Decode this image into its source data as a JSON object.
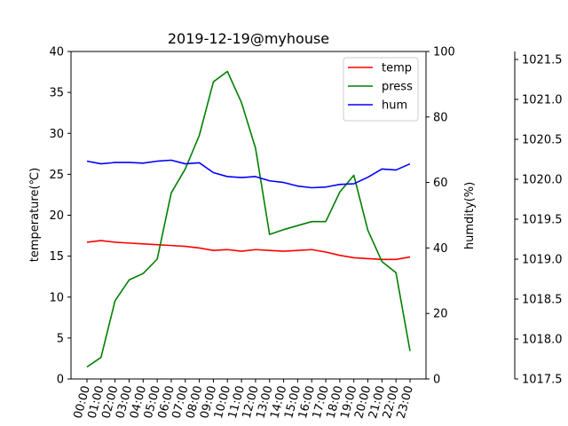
{
  "chart_data": {
    "type": "line",
    "title": "2019-12-19@myhouse",
    "xlabel": "",
    "categories": [
      "00:00",
      "01:00",
      "02:00",
      "03:00",
      "04:00",
      "05:00",
      "06:00",
      "07:00",
      "08:00",
      "09:00",
      "10:00",
      "11:00",
      "12:00",
      "13:00",
      "14:00",
      "15:00",
      "16:00",
      "17:00",
      "18:00",
      "19:00",
      "20:00",
      "21:00",
      "22:00",
      "23:00"
    ],
    "axes": {
      "left": {
        "label": "temperature(℃)",
        "ylim": [
          0,
          40
        ],
        "ticks": [
          "0",
          "5",
          "10",
          "15",
          "20",
          "25",
          "30",
          "35",
          "40"
        ]
      },
      "right": {
        "label": "humdity(%)",
        "ylim": [
          0,
          100
        ],
        "ticks": [
          "0",
          "20",
          "40",
          "60",
          "80",
          "100"
        ]
      },
      "far_right": {
        "label": "",
        "ylim": [
          1017.5,
          1021.6
        ],
        "ticks": [
          "1017.5",
          "1018.0",
          "1018.5",
          "1019.0",
          "1019.5",
          "1020.0",
          "1020.5",
          "1021.0",
          "1021.5"
        ]
      }
    },
    "series": [
      {
        "name": "temp",
        "color": "#ff0000",
        "axis": "left",
        "values": [
          16.7,
          16.9,
          16.7,
          16.6,
          16.5,
          16.4,
          16.3,
          16.2,
          16.0,
          15.7,
          15.8,
          15.6,
          15.8,
          15.7,
          15.6,
          15.7,
          15.8,
          15.5,
          15.1,
          14.8,
          14.7,
          14.6,
          14.6,
          14.9
        ]
      },
      {
        "name": "press",
        "color": "#008000",
        "axis": "far_right",
        "values": [
          1017.65,
          1017.77,
          1018.48,
          1018.74,
          1018.82,
          1019.0,
          1019.83,
          1020.13,
          1020.55,
          1021.22,
          1021.35,
          1020.96,
          1020.39,
          1019.31,
          1019.37,
          1019.42,
          1019.47,
          1019.47,
          1019.84,
          1020.05,
          1019.36,
          1018.97,
          1018.83,
          1017.85
        ]
      },
      {
        "name": "hum",
        "color": "#0000ff",
        "axis": "right",
        "values": [
          66.5,
          65.7,
          66.1,
          66.1,
          65.9,
          66.5,
          66.8,
          65.7,
          66.0,
          63.0,
          61.8,
          61.5,
          61.8,
          60.5,
          60.0,
          58.9,
          58.4,
          58.6,
          59.4,
          59.6,
          61.6,
          64.1,
          63.8,
          65.7
        ]
      }
    ],
    "legend": "top-right",
    "grid": false
  }
}
